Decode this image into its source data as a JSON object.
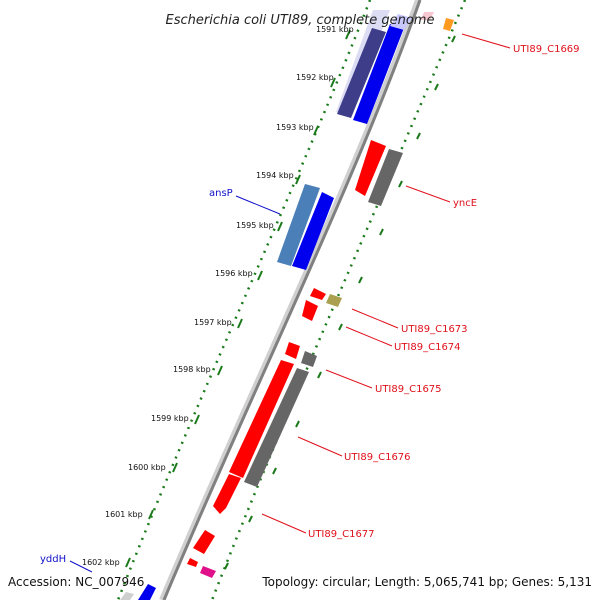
{
  "title": "Escherichia coli UTI89, complete genome",
  "footer": {
    "accession": "Accession: NC_007946",
    "topology": "Topology: circular; Length: 5,065,741 bp; Genes: 5,131"
  },
  "ticks": [
    "1591 kbp",
    "1592 kbp",
    "1593 kbp",
    "1594 kbp",
    "1595 kbp",
    "1596 kbp",
    "1597 kbp",
    "1598 kbp",
    "1599 kbp",
    "1600 kbp",
    "1601 kbp",
    "1602 kbp"
  ],
  "gene_labels": {
    "c1669": "UTI89_C1669",
    "yncE": "yncE",
    "ansP": "ansP",
    "c1673": "UTI89_C1673",
    "c1674": "UTI89_C1674",
    "c1675": "UTI89_C1675",
    "c1676": "UTI89_C1676",
    "c1677": "UTI89_C1677",
    "yddH": "yddH"
  },
  "colors": {
    "forward_gene": "#ff0000",
    "reverse_gene": "#0000ff",
    "cds_gray": "#666666",
    "backbone": "#888888",
    "tick_green": "#1a7a1a",
    "label_red": "#e0101a",
    "label_blue": "#1010c8"
  }
}
